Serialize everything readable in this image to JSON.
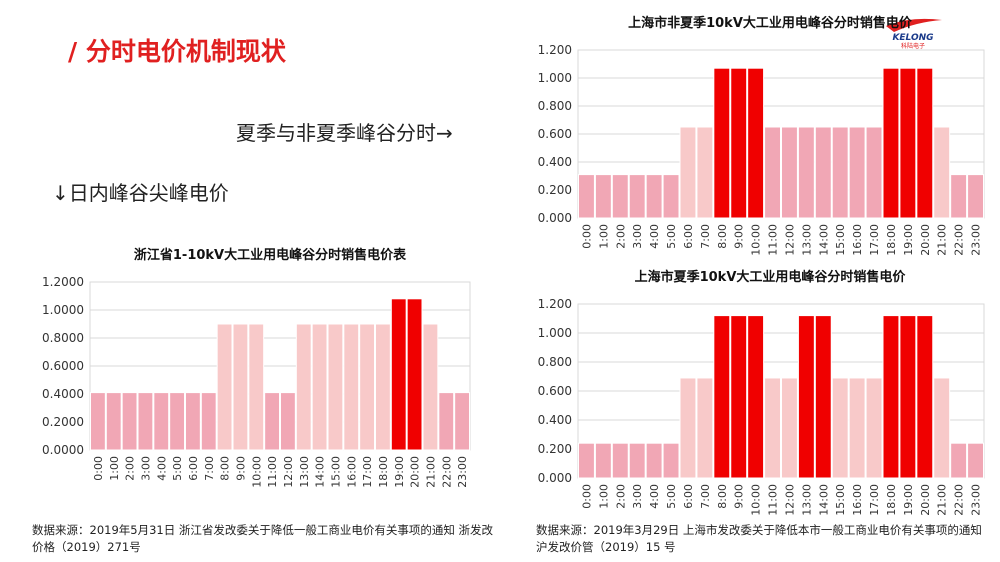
{
  "slide": {
    "title": "/ 分时电价机制现状",
    "note_right": "夏季与非夏季峰谷分时→",
    "note_left": "↓日内峰谷尖峰电价",
    "logo_text": "KELONG",
    "logo_subtext": "科陆电子"
  },
  "colors": {
    "valley": "#f1a7b5",
    "flat": "#f8c9c9",
    "peak": "#f00000",
    "accent": "#e02020"
  },
  "sources": {
    "zhejiang": "数据来源：2019年5月31日  浙江省发改委关于降低一般工商业电价有关事项的通知 浙发改价格（2019）271号",
    "shanghai": "数据来源：2019年3月29日 上海市发改委关于降低本市一般工商业电价有关事项的通知 沪发改价管（2019）15 号"
  },
  "chart_data": [
    {
      "id": "zhejiang",
      "type": "bar",
      "title": "浙江省1-10kV大工业用电峰谷分时销售电价表",
      "xlabel": "",
      "ylabel": "",
      "categories": [
        "0:00",
        "1:00",
        "2:00",
        "3:00",
        "4:00",
        "5:00",
        "6:00",
        "7:00",
        "8:00",
        "9:00",
        "10:00",
        "11:00",
        "12:00",
        "13:00",
        "14:00",
        "15:00",
        "16:00",
        "17:00",
        "18:00",
        "19:00",
        "20:00",
        "21:00",
        "22:00",
        "23:00"
      ],
      "values": [
        0.41,
        0.41,
        0.41,
        0.41,
        0.41,
        0.41,
        0.41,
        0.41,
        0.9,
        0.9,
        0.9,
        0.41,
        0.41,
        0.9,
        0.9,
        0.9,
        0.9,
        0.9,
        0.9,
        1.08,
        1.08,
        0.9,
        0.41,
        0.41
      ],
      "bar_types": [
        "valley",
        "valley",
        "valley",
        "valley",
        "valley",
        "valley",
        "valley",
        "valley",
        "flat",
        "flat",
        "flat",
        "valley",
        "valley",
        "flat",
        "flat",
        "flat",
        "flat",
        "flat",
        "flat",
        "peak",
        "peak",
        "flat",
        "valley",
        "valley"
      ],
      "yticks": [
        "0.0000",
        "0.2000",
        "0.4000",
        "0.6000",
        "0.8000",
        "1.0000",
        "1.2000"
      ],
      "ylim": [
        0,
        1.2
      ],
      "grid": true
    },
    {
      "id": "sh_nonsummer",
      "type": "bar",
      "title": "上海市非夏季10kV大工业用电峰谷分时销售电价",
      "xlabel": "",
      "ylabel": "",
      "categories": [
        "0:00",
        "1:00",
        "2:00",
        "3:00",
        "4:00",
        "5:00",
        "6:00",
        "7:00",
        "8:00",
        "9:00",
        "10:00",
        "11:00",
        "12:00",
        "13:00",
        "14:00",
        "15:00",
        "16:00",
        "17:00",
        "18:00",
        "19:00",
        "20:00",
        "21:00",
        "22:00",
        "23:00"
      ],
      "values": [
        0.31,
        0.31,
        0.31,
        0.31,
        0.31,
        0.31,
        0.65,
        0.65,
        1.07,
        1.07,
        1.07,
        0.65,
        0.65,
        0.65,
        0.65,
        0.65,
        0.65,
        0.65,
        1.07,
        1.07,
        1.07,
        0.65,
        0.31,
        0.31
      ],
      "bar_types": [
        "valley",
        "valley",
        "valley",
        "valley",
        "valley",
        "valley",
        "flat",
        "flat",
        "peak",
        "peak",
        "peak",
        "valley",
        "valley",
        "valley",
        "valley",
        "valley",
        "valley",
        "valley",
        "peak",
        "peak",
        "peak",
        "flat",
        "valley",
        "valley"
      ],
      "yticks": [
        "0.000",
        "0.200",
        "0.400",
        "0.600",
        "0.800",
        "1.000",
        "1.200"
      ],
      "ylim": [
        0,
        1.2
      ],
      "grid": true
    },
    {
      "id": "sh_summer",
      "type": "bar",
      "title": "上海市夏季10kV大工业用电峰谷分时销售电价",
      "xlabel": "",
      "ylabel": "",
      "categories": [
        "0:00",
        "1:00",
        "2:00",
        "3:00",
        "4:00",
        "5:00",
        "6:00",
        "7:00",
        "8:00",
        "9:00",
        "10:00",
        "11:00",
        "12:00",
        "13:00",
        "14:00",
        "15:00",
        "16:00",
        "17:00",
        "18:00",
        "19:00",
        "20:00",
        "21:00",
        "22:00",
        "23:00"
      ],
      "values": [
        0.24,
        0.24,
        0.24,
        0.24,
        0.24,
        0.24,
        0.69,
        0.69,
        1.12,
        1.12,
        1.12,
        0.69,
        0.69,
        1.12,
        1.12,
        0.69,
        0.69,
        0.69,
        1.12,
        1.12,
        1.12,
        0.69,
        0.24,
        0.24
      ],
      "bar_types": [
        "valley",
        "valley",
        "valley",
        "valley",
        "valley",
        "valley",
        "flat",
        "flat",
        "peak",
        "peak",
        "peak",
        "flat",
        "flat",
        "peak",
        "peak",
        "flat",
        "flat",
        "flat",
        "peak",
        "peak",
        "peak",
        "flat",
        "valley",
        "valley"
      ],
      "yticks": [
        "0.000",
        "0.200",
        "0.400",
        "0.600",
        "0.800",
        "1.000",
        "1.200"
      ],
      "ylim": [
        0,
        1.2
      ],
      "grid": true
    }
  ]
}
